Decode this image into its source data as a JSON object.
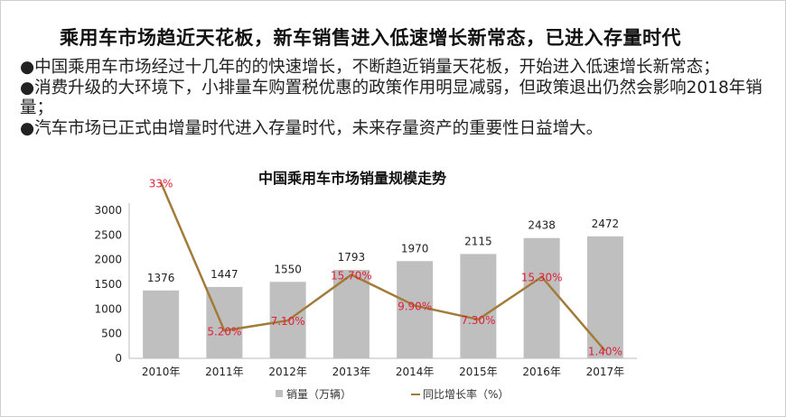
{
  "header": {
    "title": "乘用车市场趋近天花板，新车销售进入低速增长新常态，已进入存量时代"
  },
  "bullets": [
    "●中国乘用车市场经过十几年的的快速增长，不断趋近销量天花板，开始进入低速增长新常态；",
    "●消费升级的大环境下，小排量车购置税优惠的政策作用明显减弱，但政策退出仍然会影响2018年销量；",
    "●汽车市场已正式由增量时代进入存量时代，未来存量资产的重要性日益增大。"
  ],
  "chart_data": {
    "type": "bar+line",
    "title": "中国乘用车市场销量规模走势",
    "categories": [
      "2010年",
      "2011年",
      "2012年",
      "2013年",
      "2014年",
      "2015年",
      "2016年",
      "2017年"
    ],
    "ylim": [
      0,
      3000
    ],
    "yticks": [
      "0",
      "500",
      "1000",
      "1500",
      "2000",
      "2500",
      "3000"
    ],
    "grid": false,
    "legend_position": "bottom",
    "series": [
      {
        "name": "销量（万辆）",
        "type": "bar",
        "color": "#bfbfbf",
        "values": [
          1376,
          1447,
          1550,
          1793,
          1970,
          2115,
          2438,
          2472
        ],
        "labels": [
          "1376",
          "1447",
          "1550",
          "1793",
          "1970",
          "2115",
          "2438",
          "2472"
        ]
      },
      {
        "name": "同比增长率（%）",
        "type": "line",
        "color": "#a27b3a",
        "label_color": "#e0203a",
        "values": [
          33,
          5.2,
          7.1,
          15.7,
          9.9,
          7.3,
          15.3,
          1.4
        ],
        "labels": [
          "33%",
          "5.20%",
          "7.10%",
          "15.70%",
          "9.90%",
          "7.30%",
          "15.30%",
          "1.40%"
        ]
      }
    ]
  }
}
